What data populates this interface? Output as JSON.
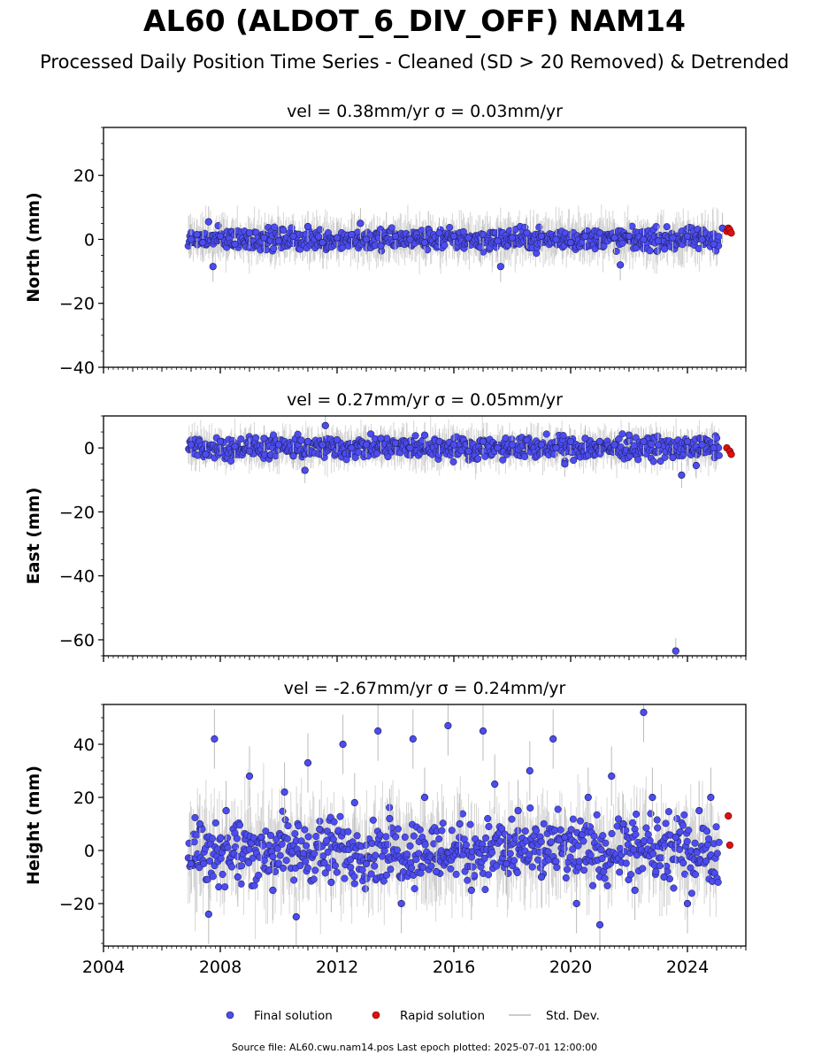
{
  "header": {
    "title": "AL60 (ALDOT_6_DIV_OFF) NAM14",
    "subtitle": "Processed Daily Position Time Series - Cleaned (SD > 20 Removed) & Detrended"
  },
  "colors": {
    "final": "#4c4cf0",
    "final_edge": "#1a1a4a",
    "rapid": "#e01010",
    "std": "#bbbbbb"
  },
  "legend": {
    "items": [
      {
        "label": "Final solution",
        "kind": "final"
      },
      {
        "label": "Rapid solution",
        "kind": "rapid"
      },
      {
        "label": "Std. Dev.",
        "kind": "std"
      }
    ]
  },
  "footer": {
    "text": "Source file: AL60.cwu.nam14.pos  Last epoch plotted: 2025-07-01 12:00:00"
  },
  "chart_data": [
    {
      "type": "scatter",
      "title": "vel = 0.38mm/yr   σ = 0.03mm/yr",
      "xlabel": "",
      "ylabel": "North (mm)",
      "xlim": [
        2004,
        2026
      ],
      "ylim": [
        -40,
        35
      ],
      "yticks": [
        -40,
        -20,
        0,
        20
      ],
      "xticks": [
        2004,
        2008,
        2012,
        2016,
        2020,
        2024
      ],
      "show_xtick_labels": false,
      "series": [
        {
          "name": "Final solution",
          "kind": "final",
          "x": [
            2007.0,
            2007.2,
            2007.4,
            2007.6,
            2007.75,
            2008.0,
            2008.5,
            2009.0,
            2009.5,
            2010.0,
            2010.5,
            2011.0,
            2011.5,
            2012.0,
            2012.5,
            2012.8,
            2013.0,
            2013.5,
            2014.0,
            2014.5,
            2015.0,
            2015.5,
            2016.0,
            2016.5,
            2016.9,
            2017.0,
            2017.5,
            2017.6,
            2018.0,
            2018.5,
            2019.0,
            2019.5,
            2020.0,
            2020.5,
            2021.0,
            2021.5,
            2021.7,
            2022.0,
            2022.5,
            2023.0,
            2023.5,
            2024.0,
            2024.5,
            2024.9,
            2025.2
          ],
          "y": [
            0.0,
            1.5,
            -1.0,
            5.5,
            -8.5,
            1.0,
            -1.5,
            2.0,
            0.5,
            -0.5,
            1.0,
            4.0,
            -1.0,
            0.5,
            1.5,
            5.0,
            0.0,
            -2.0,
            1.0,
            0.0,
            -1.0,
            2.0,
            1.0,
            0.5,
            -2.5,
            1.5,
            -0.5,
            -8.5,
            0.5,
            2.0,
            1.0,
            0.0,
            -1.0,
            1.0,
            2.0,
            0.5,
            -8.0,
            1.0,
            0.0,
            -0.5,
            0.5,
            1.0,
            0.0,
            -1.5,
            3.5
          ]
        },
        {
          "name": "Rapid solution",
          "kind": "rapid",
          "x": [
            2025.35,
            2025.4,
            2025.45,
            2025.5
          ],
          "y": [
            2.5,
            3.5,
            3.0,
            2.0
          ]
        }
      ],
      "band": {
        "x_range": [
          2006.9,
          2025.1
        ],
        "spread": 2.8
      },
      "std_spread": 6
    },
    {
      "type": "scatter",
      "title": "vel = 0.27mm/yr   σ = 0.05mm/yr",
      "xlabel": "",
      "ylabel": "East (mm)",
      "xlim": [
        2004,
        2026
      ],
      "ylim": [
        -65,
        10
      ],
      "yticks": [
        -60,
        -40,
        -20,
        0
      ],
      "xticks": [
        2004,
        2008,
        2012,
        2016,
        2020,
        2024
      ],
      "show_xtick_labels": false,
      "series": [
        {
          "name": "Final solution",
          "kind": "final",
          "x": [
            2007.0,
            2007.5,
            2008.0,
            2008.5,
            2009.0,
            2009.5,
            2010.0,
            2010.5,
            2010.9,
            2011.0,
            2011.5,
            2011.6,
            2012.0,
            2012.5,
            2013.0,
            2013.5,
            2014.0,
            2014.5,
            2015.0,
            2015.5,
            2016.0,
            2016.5,
            2017.0,
            2017.5,
            2018.0,
            2018.5,
            2019.0,
            2019.5,
            2019.8,
            2020.0,
            2020.5,
            2021.0,
            2021.5,
            2022.0,
            2022.5,
            2023.0,
            2023.5,
            2023.6,
            2023.8,
            2024.0,
            2024.3,
            2024.5,
            2024.9
          ],
          "y": [
            1.0,
            -2.0,
            2.0,
            0.5,
            -1.0,
            3.0,
            1.0,
            -2.5,
            -7.0,
            2.0,
            1.0,
            7.0,
            2.5,
            0.0,
            1.0,
            3.0,
            1.5,
            0.0,
            4.0,
            2.0,
            1.0,
            -1.0,
            2.0,
            0.0,
            1.0,
            2.5,
            1.0,
            0.0,
            -5.0,
            2.0,
            3.0,
            2.0,
            1.0,
            4.0,
            2.0,
            1.0,
            -3.0,
            -63.5,
            -8.5,
            2.0,
            -5.5,
            1.0,
            0.0
          ]
        },
        {
          "name": "Rapid solution",
          "kind": "rapid",
          "x": [
            2025.35,
            2025.45,
            2025.5
          ],
          "y": [
            0.0,
            -1.0,
            -2.0
          ]
        }
      ],
      "band": {
        "x_range": [
          2006.9,
          2025.1
        ],
        "spread": 2.8
      },
      "std_spread": 5
    },
    {
      "type": "scatter",
      "title": "vel = -2.67mm/yr   σ = 0.24mm/yr",
      "xlabel": "",
      "ylabel": "Height (mm)",
      "xlim": [
        2004,
        2026
      ],
      "ylim": [
        -36,
        55
      ],
      "yticks": [
        -20,
        0,
        20,
        40
      ],
      "xticks": [
        2004,
        2008,
        2012,
        2016,
        2020,
        2024
      ],
      "show_xtick_labels": true,
      "series": [
        {
          "name": "Final solution",
          "kind": "final",
          "x": [
            2007.0,
            2007.3,
            2007.6,
            2007.8,
            2008.2,
            2008.6,
            2009.0,
            2009.4,
            2009.8,
            2010.2,
            2010.6,
            2011.0,
            2011.4,
            2011.8,
            2012.2,
            2012.6,
            2013.0,
            2013.4,
            2013.8,
            2014.2,
            2014.6,
            2015.0,
            2015.4,
            2015.8,
            2016.2,
            2016.6,
            2017.0,
            2017.4,
            2017.8,
            2018.2,
            2018.6,
            2019.0,
            2019.4,
            2019.8,
            2020.2,
            2020.6,
            2021.0,
            2021.4,
            2021.8,
            2022.2,
            2022.5,
            2022.8,
            2023.2,
            2023.6,
            2024.0,
            2024.4,
            2024.8
          ],
          "y": [
            -5.0,
            10.0,
            -24.0,
            42.0,
            15.0,
            -10.0,
            28.0,
            5.0,
            -15.0,
            22.0,
            -25.0,
            33.0,
            8.0,
            -12.0,
            40.0,
            18.0,
            -5.0,
            45.0,
            12.0,
            -20.0,
            42.0,
            20.0,
            -8.0,
            47.0,
            10.0,
            -15.0,
            45.0,
            25.0,
            -5.0,
            15.0,
            30.0,
            -10.0,
            42.0,
            5.0,
            -20.0,
            20.0,
            -28.0,
            28.0,
            10.0,
            -15.0,
            52.0,
            20.0,
            -10.0,
            5.0,
            -20.0,
            15.0,
            20.0
          ]
        },
        {
          "name": "Rapid solution",
          "kind": "rapid",
          "x": [
            2025.4,
            2025.45
          ],
          "y": [
            13.0,
            2.0
          ]
        }
      ],
      "band": {
        "x_range": [
          2006.9,
          2025.1
        ],
        "spread": 10
      },
      "std_spread": 14
    }
  ]
}
